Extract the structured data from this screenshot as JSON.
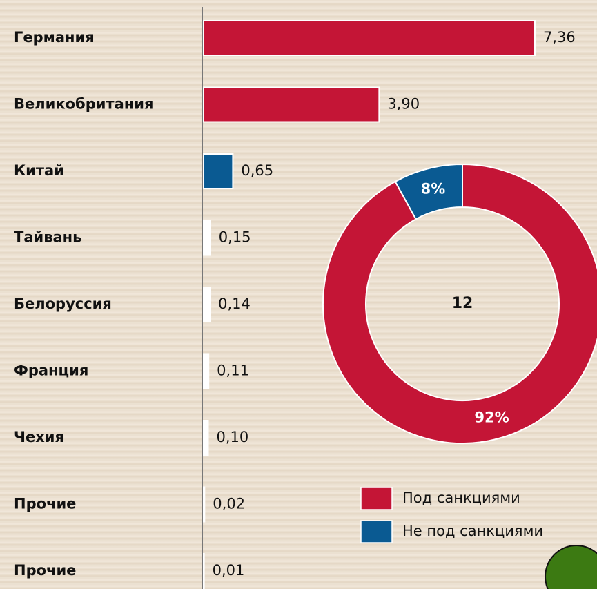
{
  "chart_data": [
    {
      "type": "hbar",
      "categories": [
        "Германия",
        "Великобритания",
        "Китай",
        "Тайвань",
        "Белоруссия",
        "Франция",
        "Чехия",
        "Прочие",
        "Прочие"
      ],
      "values": [
        7.36,
        3.9,
        0.65,
        0.15,
        0.14,
        0.11,
        0.1,
        0.02,
        0.01
      ],
      "value_labels": [
        "7,36",
        "3,90",
        "0,65",
        "0,15",
        "0,14",
        "0,11",
        "0,10",
        "0,02",
        "0,01"
      ],
      "colors": [
        "#c41536",
        "#c41536",
        "#0a5a92",
        "#ffffff",
        "#ffffff",
        "#ffffff",
        "#ffffff",
        "#ffffff",
        "#ffffff"
      ],
      "xlim": [
        0,
        8.74
      ]
    },
    {
      "type": "donut",
      "center_label": "12",
      "series": [
        {
          "name": "Под санкциями",
          "color": "#c41536"
        },
        {
          "name": "Не под санкциями",
          "color": "#0a5a92"
        }
      ],
      "values": [
        92,
        8
      ],
      "value_labels": [
        "92%",
        "8%"
      ]
    }
  ]
}
